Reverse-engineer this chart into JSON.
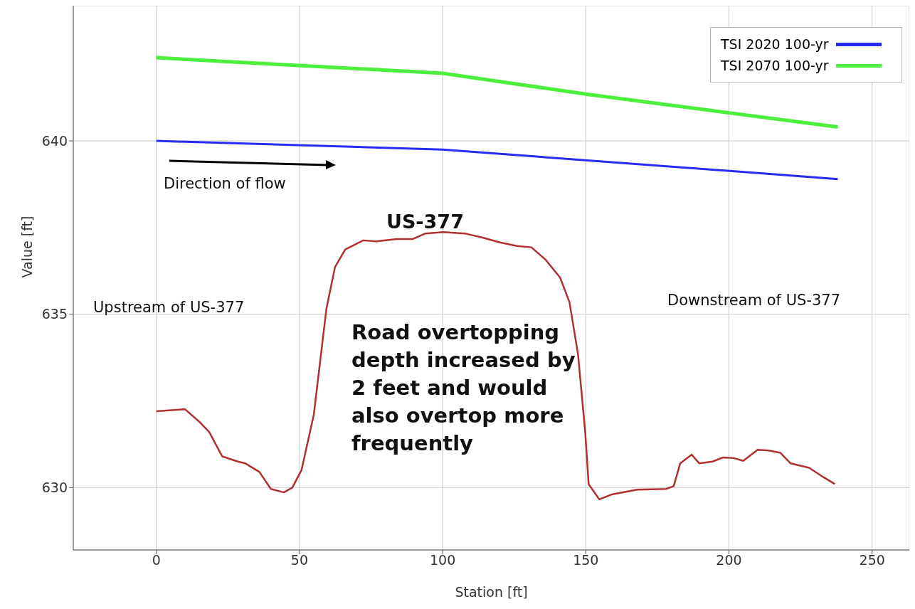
{
  "chart_data": {
    "type": "line",
    "xlabel": "Station [ft]",
    "ylabel": "Value [ft]",
    "xlim": [
      -29,
      263
    ],
    "xticks": [
      0,
      50,
      100,
      150,
      200,
      250
    ],
    "ylim": [
      628.2,
      643.9
    ],
    "yticks": [
      630,
      635,
      640
    ],
    "grid": true,
    "legend": "top right",
    "marker": "none",
    "line_style": "solid",
    "series": [
      {
        "name": "TSI 2020 100-yr",
        "color": "#2a2af5",
        "x": [
          0,
          100,
          238
        ],
        "values": [
          640.0,
          639.75,
          638.9
        ]
      },
      {
        "name": "TSI 2070 100-yr",
        "color": "#4cf03c",
        "x": [
          0,
          100,
          150,
          238
        ],
        "values": [
          642.4,
          641.95,
          641.35,
          640.4
        ]
      },
      {
        "color": "#b03030",
        "x": [
          0,
          10,
          15,
          18.5,
          23,
          28.5,
          31,
          36,
          40,
          44.5,
          47.5,
          50.7,
          55,
          59.4,
          62.4,
          66,
          72.3,
          76.7,
          84,
          89.6,
          94,
          100.2,
          107.7,
          114,
          120,
          126,
          131,
          136,
          141,
          144.3,
          147.3,
          149.8,
          151,
          154.7,
          159,
          168,
          178,
          180.7,
          183,
          187,
          189.6,
          194.3,
          198,
          201.7,
          205,
          210,
          214,
          218,
          221.5,
          228,
          233,
          237
        ],
        "values": [
          632.2,
          632.26,
          631.9,
          631.6,
          630.9,
          630.75,
          630.7,
          630.45,
          629.96,
          629.86,
          630.0,
          630.5,
          632.1,
          635.15,
          636.36,
          636.87,
          637.13,
          637.1,
          637.17,
          637.17,
          637.33,
          637.37,
          637.33,
          637.21,
          637.07,
          636.97,
          636.93,
          636.57,
          636.06,
          635.35,
          633.84,
          631.6,
          630.1,
          629.66,
          629.8,
          629.94,
          629.96,
          630.04,
          630.7,
          630.95,
          630.7,
          630.75,
          630.87,
          630.85,
          630.77,
          631.09,
          631.07,
          631.0,
          630.7,
          630.57,
          630.3,
          630.1
        ]
      }
    ],
    "annotations": [
      "Direction of flow",
      "US-377",
      "Upstream of US-377",
      "Downstream of US-377",
      "Road overtopping depth increased by 2 feet and would also overtop more frequently"
    ]
  }
}
